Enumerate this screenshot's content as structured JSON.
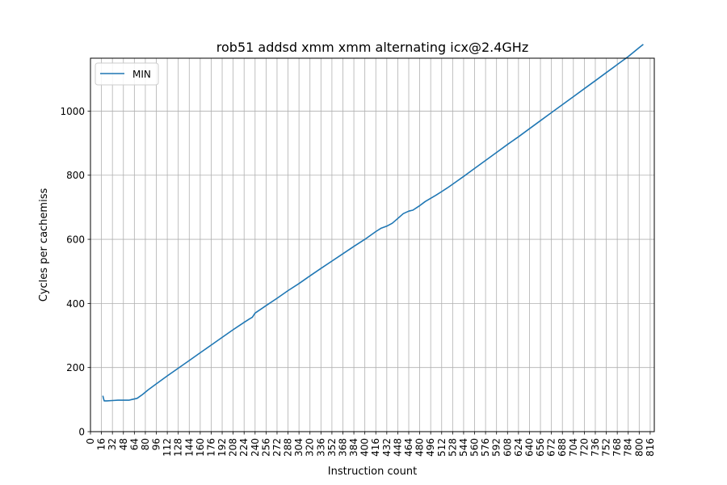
{
  "chart_data": {
    "type": "line",
    "title": "rob51 addsd xmm xmm alternating icx@2.4GHz",
    "xlabel": "Instruction count",
    "ylabel": "Cycles per cachemiss",
    "xlim": [
      0,
      822
    ],
    "ylim": [
      0,
      1165
    ],
    "x_ticks": [
      0,
      16,
      32,
      48,
      64,
      80,
      96,
      112,
      128,
      144,
      160,
      176,
      192,
      208,
      224,
      240,
      256,
      272,
      288,
      304,
      320,
      336,
      352,
      368,
      384,
      400,
      416,
      432,
      448,
      464,
      480,
      496,
      512,
      528,
      544,
      560,
      576,
      592,
      608,
      624,
      640,
      656,
      672,
      688,
      704,
      720,
      736,
      752,
      768,
      784,
      800,
      816
    ],
    "y_ticks": [
      0,
      200,
      400,
      600,
      800,
      1000
    ],
    "grid": true,
    "legend_position": "upper left",
    "series": [
      {
        "name": "MIN",
        "color": "#1f77b4",
        "points": [
          [
            18,
            112
          ],
          [
            19,
            104
          ],
          [
            20,
            96
          ],
          [
            24,
            96
          ],
          [
            32,
            97
          ],
          [
            40,
            98
          ],
          [
            48,
            98
          ],
          [
            56,
            98
          ],
          [
            60,
            100
          ],
          [
            68,
            104
          ],
          [
            76,
            116
          ],
          [
            84,
            130
          ],
          [
            96,
            149
          ],
          [
            112,
            174
          ],
          [
            128,
            198
          ],
          [
            144,
            222
          ],
          [
            160,
            246
          ],
          [
            176,
            270
          ],
          [
            192,
            294
          ],
          [
            208,
            318
          ],
          [
            224,
            341
          ],
          [
            232,
            352
          ],
          [
            236,
            357
          ],
          [
            240,
            370
          ],
          [
            256,
            393
          ],
          [
            272,
            416
          ],
          [
            288,
            440
          ],
          [
            304,
            462
          ],
          [
            320,
            486
          ],
          [
            336,
            509
          ],
          [
            352,
            532
          ],
          [
            368,
            555
          ],
          [
            384,
            578
          ],
          [
            400,
            600
          ],
          [
            416,
            624
          ],
          [
            424,
            635
          ],
          [
            432,
            641
          ],
          [
            440,
            650
          ],
          [
            448,
            665
          ],
          [
            456,
            680
          ],
          [
            464,
            688
          ],
          [
            470,
            691
          ],
          [
            480,
            705
          ],
          [
            488,
            718
          ],
          [
            496,
            728
          ],
          [
            504,
            738
          ],
          [
            512,
            749
          ],
          [
            520,
            760
          ],
          [
            528,
            772
          ],
          [
            536,
            784
          ],
          [
            544,
            796
          ],
          [
            560,
            821
          ],
          [
            576,
            846
          ],
          [
            592,
            871
          ],
          [
            608,
            896
          ],
          [
            624,
            920
          ],
          [
            640,
            945
          ],
          [
            656,
            970
          ],
          [
            672,
            995
          ],
          [
            688,
            1020
          ],
          [
            704,
            1045
          ],
          [
            720,
            1070
          ],
          [
            736,
            1095
          ],
          [
            752,
            1120
          ],
          [
            768,
            1145
          ],
          [
            784,
            1170
          ],
          [
            800,
            1198
          ],
          [
            806,
            1208
          ]
        ]
      }
    ]
  }
}
